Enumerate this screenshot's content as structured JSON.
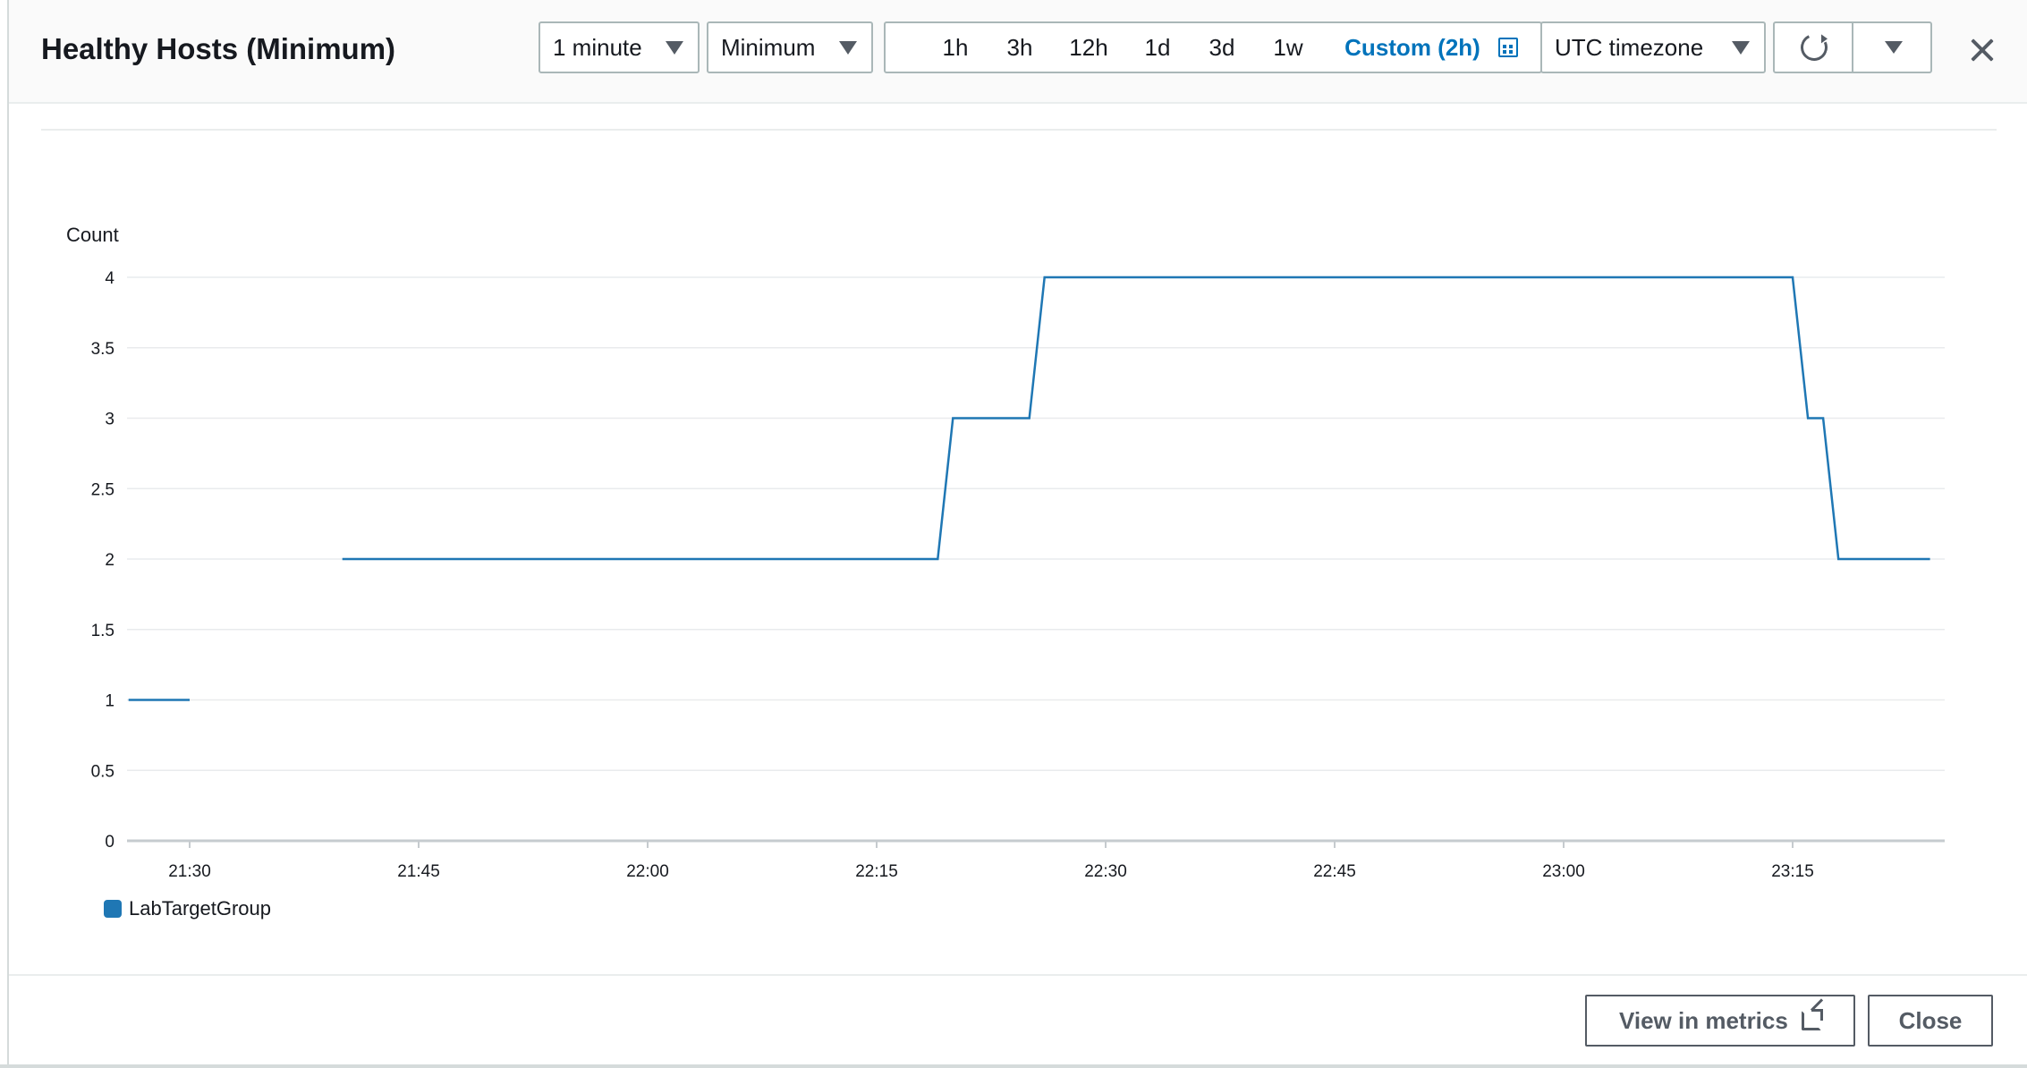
{
  "header": {
    "title": "Healthy Hosts (Minimum)",
    "period": "1 minute",
    "statistic": "Minimum",
    "ranges": [
      "1h",
      "3h",
      "12h",
      "1d",
      "3d",
      "1w"
    ],
    "custom_range": "Custom (2h)",
    "timezone": "UTC timezone",
    "icons": {
      "refresh": "refresh-icon",
      "more": "caret-down-icon",
      "close": "close-icon",
      "calendar": "calendar-icon"
    }
  },
  "footer": {
    "view_in_metrics": "View in metrics",
    "close": "Close",
    "external_icon": "external-link-icon"
  },
  "chart_data": {
    "type": "line",
    "ylabel": "Count",
    "ylim": [
      0,
      4
    ],
    "yticks": [
      "0",
      "0.5",
      "1",
      "1.5",
      "2",
      "2.5",
      "3",
      "3.5",
      "4"
    ],
    "xticks": [
      "21:30",
      "21:45",
      "22:00",
      "22:15",
      "22:30",
      "22:45",
      "23:00",
      "23:15"
    ],
    "x_range": [
      "21:26",
      "23:25"
    ],
    "grid": true,
    "legend_position": "bottom-left",
    "series": [
      {
        "name": "LabTargetGroup",
        "color": "#1f77b4",
        "segments": [
          {
            "x": [
              "21:26",
              "21:30"
            ],
            "y": [
              1,
              1
            ]
          },
          {
            "x": [
              "21:40",
              "22:19",
              "22:20",
              "22:25",
              "22:26",
              "23:15",
              "23:16",
              "23:17",
              "23:18",
              "23:24"
            ],
            "y": [
              2,
              2,
              3,
              3,
              4,
              4,
              3,
              3,
              2,
              2
            ]
          }
        ]
      }
    ]
  }
}
